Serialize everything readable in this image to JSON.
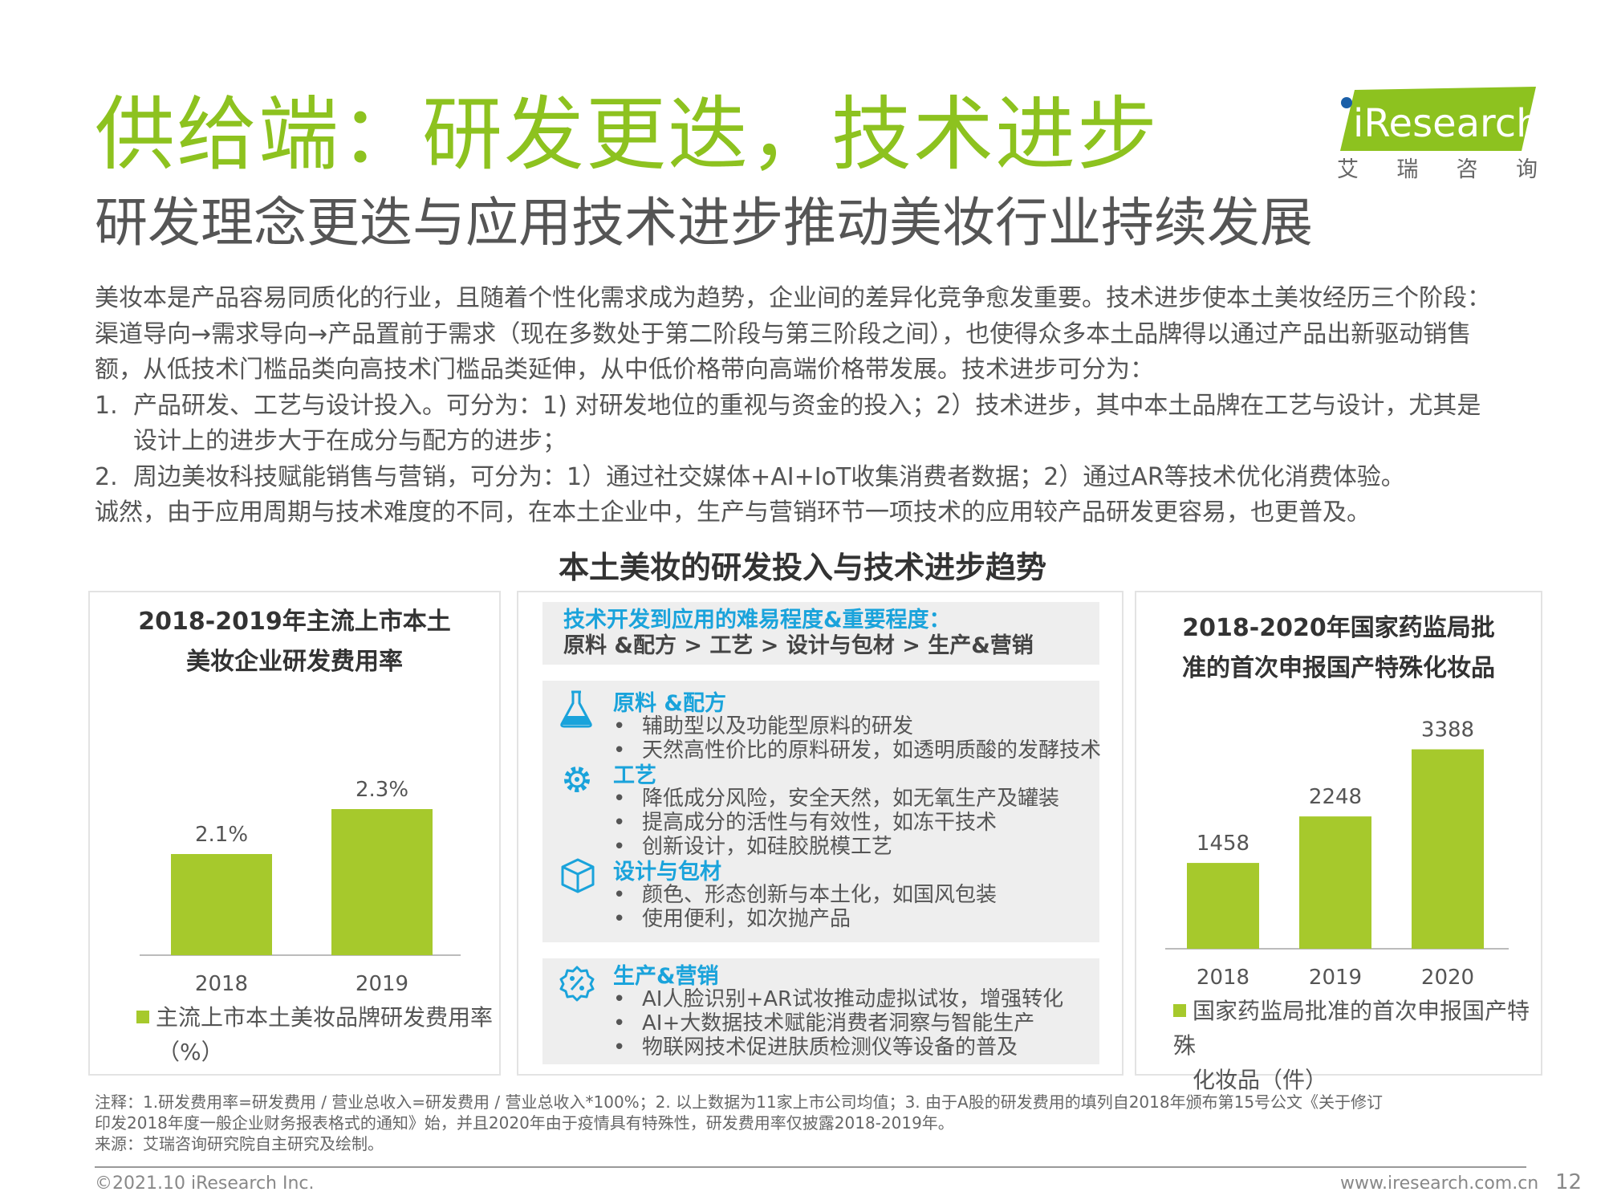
{
  "header": {
    "title": "供给端：研发更迭，技术进步",
    "subtitle": "研发理念更迭与应用技术进步推动美妆行业持续发展",
    "logo_text": "iResearch",
    "logo_cn": [
      "艾",
      "瑞",
      "咨",
      "询"
    ]
  },
  "body": {
    "lines": [
      "美妆本是产品容易同质化的行业，且随着个性化需求成为趋势，企业间的差异化竞争愈发重要。技术进步使本土美妆经历三个阶段：",
      "渠道导向→需求导向→产品置前于需求（现在多数处于第二阶段与第三阶段之间），也使得众多本土品牌得以通过产品出新驱动销售",
      "额，从低技术门槛品类向高技术门槛品类延伸，从中低价格带向高端价格带发展。技术进步可分为："
    ],
    "item1_num": "1.",
    "item1_line1": "产品研发、工艺与设计投入。可分为：1) 对研发地位的重视与资金的投入；2）技术进步，其中本土品牌在工艺与设计，尤其是",
    "item1_line2": "设计上的进步大于在成分与配方的进步；",
    "item2_num": "2.",
    "item2_line1": "周边美妆科技赋能销售与营销，可分为：1）通过社交媒体+AI+IoT收集消费者数据；2）通过AR等技术优化消费体验。",
    "closing": "诚然，由于应用周期与技术难度的不同，在本土企业中，生产与营销环节一项技术的应用较产品研发更容易，也更普及。"
  },
  "figure_title": "本土美妆的研发投入与技术进步趋势",
  "left_panel": {
    "title_line1": "2018-2019年主流上市本土",
    "title_line2": "美妆企业研发费用率",
    "legend_line1": "主流上市本土美妆品牌研发费用率",
    "legend_line2": "（%）"
  },
  "middle_panel": {
    "header_line1": "技术开发到应用的难易程度&重要程度：",
    "header_line2": "原料 &配方 > 工艺 > 设计与包材 > 生产&营销",
    "sections": [
      {
        "icon": "flask-icon",
        "title": "原料 &配方",
        "bullets": [
          "辅助型以及功能型原料的研发",
          "天然高性价比的原料研发，如透明质酸的发酵技术"
        ]
      },
      {
        "icon": "gear-icon",
        "title": "工艺",
        "bullets": [
          "降低成分风险，安全天然，如无氧生产及罐装",
          "提高成分的活性与有效性，如冻干技术",
          "创新设计，如硅胶脱模工艺"
        ]
      },
      {
        "icon": "box-icon",
        "title": "设计与包材",
        "bullets": [
          "颜色、形态创新与本土化，如国风包装",
          "使用便利，如次抛产品"
        ]
      },
      {
        "icon": "percent-badge-icon",
        "title": "生产&营销",
        "bullets": [
          "AI人脸识别+AR试妆推动虚拟试妆，增强转化",
          "AI+大数据技术赋能消费者洞察与智能生产",
          "物联网技术促进肤质检测仪等设备的普及"
        ]
      }
    ],
    "bullet_mark": "•"
  },
  "right_panel": {
    "title_line1": "2018-2020年国家药监局批",
    "title_line2": "准的首次申报国产特殊化妆品",
    "legend_line1": "国家药监局批准的首次申报国产特殊",
    "legend_line2": "化妆品（件）"
  },
  "chart_data": [
    {
      "type": "bar",
      "title": "2018-2019年主流上市本土美妆企业研发费用率",
      "categories": [
        "2018",
        "2019"
      ],
      "series": [
        {
          "name": "主流上市本土美妆品牌研发费用率（%）",
          "values": [
            2.1,
            2.3
          ]
        }
      ],
      "data_labels": [
        "2.1%",
        "2.3%"
      ],
      "color": "#a6c92c",
      "ylim": [
        1.65,
        2.45
      ]
    },
    {
      "type": "bar",
      "title": "2018-2020年国家药监局批准的首次申报国产特殊化妆品",
      "categories": [
        "2018",
        "2019",
        "2020"
      ],
      "series": [
        {
          "name": "国家药监局批准的首次申报国产特殊化妆品（件）",
          "values": [
            1458,
            2248,
            3388
          ]
        }
      ],
      "data_labels": [
        "1458",
        "2248",
        "3388"
      ],
      "color": "#a6c92c",
      "ylim": [
        0,
        4200
      ]
    }
  ],
  "notes": {
    "line1": "注释：1.研发费用率=研发费用 / 营业总收入=研发费用 / 营业总收入*100%；2. 以上数据为11家上市公司均值；3. 由于A股的研发费用的填列自2018年颁布第15号公文《关于修订",
    "line2": "印发2018年度一般企业财务报表格式的通知》始，并且2020年由于疫情具有特殊性，研发费用率仅披露2018-2019年。",
    "line3": "来源：艾瑞咨询研究院自主研究及绘制。"
  },
  "footer": {
    "copyright": "©2021.10 iResearch Inc.",
    "website": "www.iresearch.com.cn",
    "page": "12"
  }
}
